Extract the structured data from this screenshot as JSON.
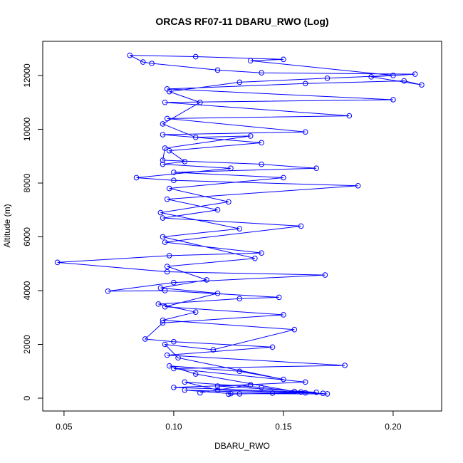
{
  "chart_data": {
    "type": "line",
    "title": "ORCAS RF07-11 DBARU_RWO (Log)",
    "x_label": "DBARU_RWO",
    "y_label": "Altitude (m)",
    "color": "#0000ff",
    "marker": "circle",
    "xlim": [
      0.0403,
      0.2221
    ],
    "ylim": [
      -477,
      13271
    ],
    "xticks": [
      0.05,
      {
        "value": 0.1,
        "label": "0.10"
      },
      0.15,
      {
        "value": 0.2,
        "label": "0.20"
      }
    ],
    "yticks": [
      0,
      2000,
      4000,
      6000,
      8000,
      10000,
      12000
    ],
    "x": [
      0.125,
      0.13,
      0.16,
      0.168,
      0.12,
      0.105,
      0.14,
      0.155,
      0.11,
      0.098,
      0.13,
      0.15,
      0.102,
      0.096,
      0.118,
      0.155,
      0.095,
      0.11,
      0.093,
      0.13,
      0.148,
      0.096,
      0.07,
      0.1,
      0.169,
      0.097,
      0.047,
      0.098,
      0.14,
      0.096,
      0.158,
      0.095,
      0.12,
      0.097,
      0.184,
      0.1,
      0.083,
      0.126,
      0.095,
      0.105,
      0.098,
      0.14,
      0.095,
      0.16,
      0.097,
      0.18,
      0.096,
      0.2,
      0.097,
      0.16,
      0.205,
      0.213,
      0.19,
      0.21,
      0.14,
      0.12,
      0.09,
      0.086,
      0.08,
      0.11,
      0.15,
      0.135,
      0.2,
      0.17,
      0.13,
      0.098,
      0.112,
      0.095,
      0.11,
      0.135,
      0.096,
      0.095,
      0.14,
      0.165,
      0.1,
      0.15,
      0.098,
      0.125,
      0.094,
      0.13,
      0.095,
      0.137,
      0.097,
      0.115,
      0.094,
      0.12,
      0.096,
      0.15,
      0.095,
      0.087,
      0.1,
      0.145,
      0.097,
      0.178,
      0.1,
      0.16,
      0.12,
      0.165,
      0.145,
      0.105,
      0.126,
      0.17,
      0.158,
      0.1,
      0.135,
      0.112
    ],
    "values": [
      150,
      160,
      200,
      180,
      300,
      600,
      400,
      250,
      900,
      1200,
      1000,
      700,
      1500,
      2000,
      1800,
      2550,
      2900,
      3200,
      3500,
      3700,
      3750,
      4000,
      3980,
      4300,
      4580,
      4700,
      5050,
      5300,
      5400,
      5800,
      6400,
      6700,
      7000,
      7400,
      7900,
      8100,
      8200,
      8550,
      8700,
      8800,
      9200,
      9500,
      9800,
      9900,
      10400,
      10500,
      11000,
      11100,
      11500,
      11700,
      11800,
      11650,
      11950,
      12050,
      12100,
      12200,
      12450,
      12500,
      12750,
      12700,
      12600,
      12550,
      12000,
      11900,
      11750,
      11400,
      11000,
      10200,
      9700,
      9750,
      9300,
      8850,
      8700,
      8550,
      8400,
      8200,
      7800,
      7300,
      6900,
      6300,
      6000,
      5200,
      4900,
      4400,
      4100,
      3900,
      3400,
      3100,
      2800,
      2200,
      2100,
      1900,
      1600,
      1220,
      1100,
      600,
      450,
      220,
      190,
      300,
      170,
      160,
      230,
      400,
      500,
      200
    ]
  }
}
